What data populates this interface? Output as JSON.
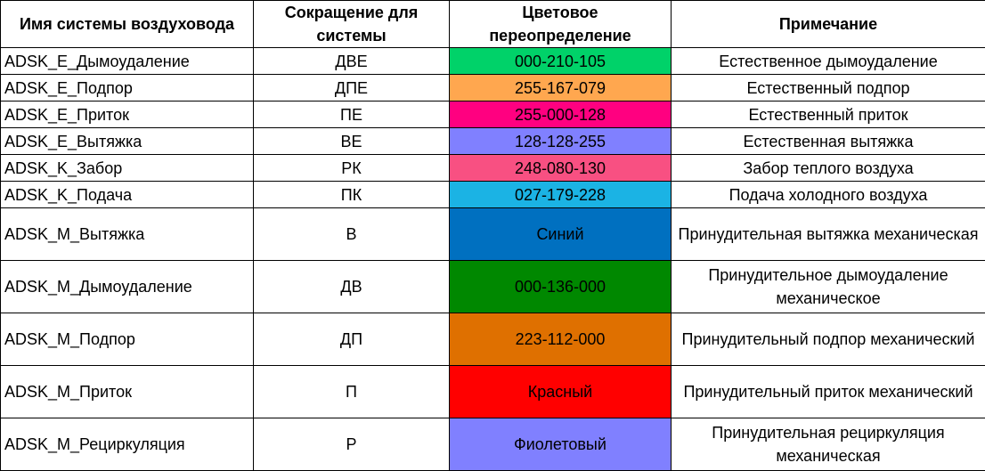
{
  "headers": {
    "system_name": "Имя системы воздуховода",
    "abbreviation": "Сокращение для системы",
    "color_override": "Цветовое переопределение",
    "note": "Примечание"
  },
  "rows": [
    {
      "name": "ADSK_E_Дымоудаление",
      "abbr": "ДВЕ",
      "color_text": "000-210-105",
      "color": "#00D269",
      "note": "Естественное дымоудаление"
    },
    {
      "name": "ADSK_E_Подпор",
      "abbr": "ДПЕ",
      "color_text": "255-167-079",
      "color": "#FFA74F",
      "note": "Естественный подпор"
    },
    {
      "name": "ADSK_E_Приток",
      "abbr": "ПЕ",
      "color_text": "255-000-128",
      "color": "#FF0080",
      "note": "Естественный приток"
    },
    {
      "name": "ADSK_E_Вытяжка",
      "abbr": "ВЕ",
      "color_text": "128-128-255",
      "color": "#8080FF",
      "note": "Естественная вытяжка"
    },
    {
      "name": "ADSK_K_Забор",
      "abbr": "РК",
      "color_text": "248-080-130",
      "color": "#F85082",
      "note": "Забор теплого воздуха"
    },
    {
      "name": "ADSK_K_Подача",
      "abbr": "ПК",
      "color_text": "027-179-228",
      "color": "#1BB3E4",
      "note": "Подача холодного воздуха"
    },
    {
      "name": "ADSK_M_Вытяжка",
      "abbr": "В",
      "color_text": "Синий",
      "color": "#0070C0",
      "note": "Принудительная вытяжка механическая"
    },
    {
      "name": "ADSK_M_Дымоудаление",
      "abbr": "ДВ",
      "color_text": "000-136-000",
      "color": "#008800",
      "note": "Принудительное дымоудаление механическое"
    },
    {
      "name": "ADSK_M_Подпор",
      "abbr": "ДП",
      "color_text": "223-112-000",
      "color": "#DF7000",
      "note": "Принудительный подпор механический"
    },
    {
      "name": "ADSK_M_Приток",
      "abbr": "П",
      "color_text": "Красный",
      "color": "#FF0000",
      "note": "Принудительный приток механический"
    },
    {
      "name": "ADSK_M_Рециркуляция",
      "abbr": "Р",
      "color_text": "Фиолетовый",
      "color": "#8080FF",
      "note": "Принудительная рециркуляция механическая"
    }
  ]
}
